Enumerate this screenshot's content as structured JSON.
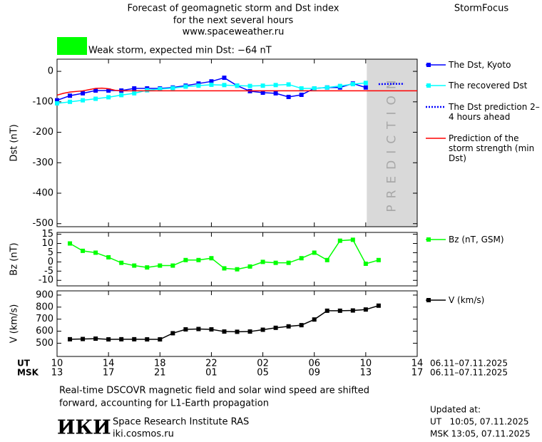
{
  "header": {
    "title_lines": [
      "Forecast of geomagnetic storm and Dst index",
      "for the next several hours",
      "www.spaceweather.ru"
    ],
    "brand": "StormFocus",
    "status": {
      "text": "Weak storm, expected min Dst: −64 nT",
      "color": "#00ff00"
    }
  },
  "chart_data": [
    {
      "type": "line",
      "y_label": "Dst (nT)",
      "xlim": [
        0,
        28
      ],
      "ylim": [
        -510,
        40
      ],
      "yticks": [
        0,
        -100,
        -200,
        -300,
        -400,
        -500
      ],
      "prediction": {
        "start": 24.08,
        "end": 28,
        "label": "PREDICTION",
        "color": "#d9d9d9"
      },
      "series": [
        {
          "name": "The Dst, Kyoto",
          "color": "#0000ff",
          "marker": "square",
          "x": [
            0,
            1,
            2,
            3,
            4,
            5,
            6,
            7,
            8,
            9,
            10,
            11,
            12,
            13,
            14,
            15,
            16,
            17,
            18,
            19,
            20,
            21,
            22,
            23,
            24
          ],
          "values": [
            -95,
            -80,
            -72,
            -63,
            -63,
            -63,
            -56,
            -56,
            -56,
            -53,
            -47,
            -40,
            -33,
            -21,
            -47,
            -65,
            -70,
            -72,
            -84,
            -77,
            -56,
            -53,
            -53,
            -40,
            -53
          ]
        },
        {
          "name": "The recovered Dst",
          "color": "#00ffff",
          "marker": "square",
          "x": [
            0,
            1,
            2,
            3,
            4,
            5,
            6,
            7,
            8,
            9,
            10,
            11,
            12,
            13,
            14,
            15,
            16,
            17,
            18,
            19,
            20,
            21,
            22,
            23,
            24
          ],
          "values": [
            -105,
            -100,
            -95,
            -90,
            -85,
            -78,
            -72,
            -62,
            -58,
            -55,
            -50,
            -47,
            -44,
            -45,
            -47,
            -48,
            -47,
            -45,
            -43,
            -56,
            -56,
            -53,
            -48,
            -42,
            -38
          ]
        },
        {
          "name": "The Dst prediction 2–4 hours ahead",
          "color": "#0000ff",
          "dash": "dotted",
          "x": [
            25,
            26,
            27
          ],
          "values": [
            -42,
            -41,
            -41
          ]
        },
        {
          "name": "Prediction of the storm strength (min Dst)",
          "color": "#ff0000",
          "x": [
            0,
            0.5,
            1,
            2,
            3,
            3.5,
            4,
            4.5,
            5,
            28
          ],
          "values": [
            -78,
            -72,
            -68,
            -64,
            -56,
            -55,
            -57,
            -62,
            -64,
            -64
          ]
        }
      ]
    },
    {
      "type": "line",
      "y_label": "Bz (nT)",
      "xlim": [
        0,
        28
      ],
      "ylim": [
        -13,
        16
      ],
      "yticks": [
        15,
        10,
        5,
        0,
        -5,
        -10
      ],
      "series": [
        {
          "name": "Bz (nT, GSM)",
          "color": "#00ff00",
          "marker": "square",
          "x": [
            1,
            2,
            3,
            4,
            5,
            6,
            7,
            8,
            9,
            10,
            11,
            12,
            13,
            14,
            15,
            16,
            17,
            18,
            19,
            20,
            21,
            22,
            23,
            24,
            25
          ],
          "values": [
            10,
            6,
            5,
            2.5,
            -0.5,
            -2,
            -3,
            -2,
            -2,
            1,
            1,
            2,
            -3.5,
            -4,
            -2.5,
            0,
            -0.5,
            -0.5,
            2,
            5,
            1,
            11.5,
            12,
            -1,
            1
          ]
        }
      ]
    },
    {
      "type": "line",
      "y_label": "V (km/s)",
      "xlim": [
        0,
        28
      ],
      "ylim": [
        390,
        935
      ],
      "yticks": [
        900,
        800,
        700,
        600,
        500
      ],
      "xticks": [
        {
          "value": 0,
          "label": "10"
        },
        {
          "value": 4,
          "label": "14"
        },
        {
          "value": 8,
          "label": "18"
        },
        {
          "value": 12,
          "label": "22"
        },
        {
          "value": 16,
          "label": "02"
        },
        {
          "value": 20,
          "label": "06"
        },
        {
          "value": 24,
          "label": "10"
        },
        {
          "value": 28,
          "label": "14"
        }
      ],
      "msk_labels": [
        "13",
        "17",
        "21",
        "01",
        "05",
        "09",
        "13",
        "17"
      ],
      "x_rows": [
        "UT",
        "MSK"
      ],
      "date_range": "06.11–07.11.2025",
      "series": [
        {
          "name": "V (km/s)",
          "color": "#000000",
          "marker": "square",
          "x": [
            1,
            2,
            3,
            4,
            5,
            6,
            7,
            8,
            9,
            10,
            11,
            12,
            13,
            14,
            15,
            16,
            17,
            18,
            19,
            20,
            21,
            22,
            23,
            24,
            25
          ],
          "values": [
            533,
            535,
            538,
            532,
            533,
            533,
            532,
            532,
            583,
            615,
            618,
            615,
            597,
            595,
            597,
            612,
            628,
            640,
            650,
            697,
            770,
            770,
            772,
            780,
            812
          ]
        }
      ]
    }
  ],
  "footer": {
    "note_lines": [
      "Real-time DSCOVR magnetic field and solar wind speed are shifted",
      "forward, accounting for L1-Earth propagation"
    ],
    "logo": "ИКИ",
    "institute": "Space Research Institute RAS",
    "site": "iki.cosmos.ru",
    "updated": [
      "Updated at:",
      "UT   10:05, 07.11.2025",
      "MSK 13:05, 07.11.2025"
    ]
  }
}
